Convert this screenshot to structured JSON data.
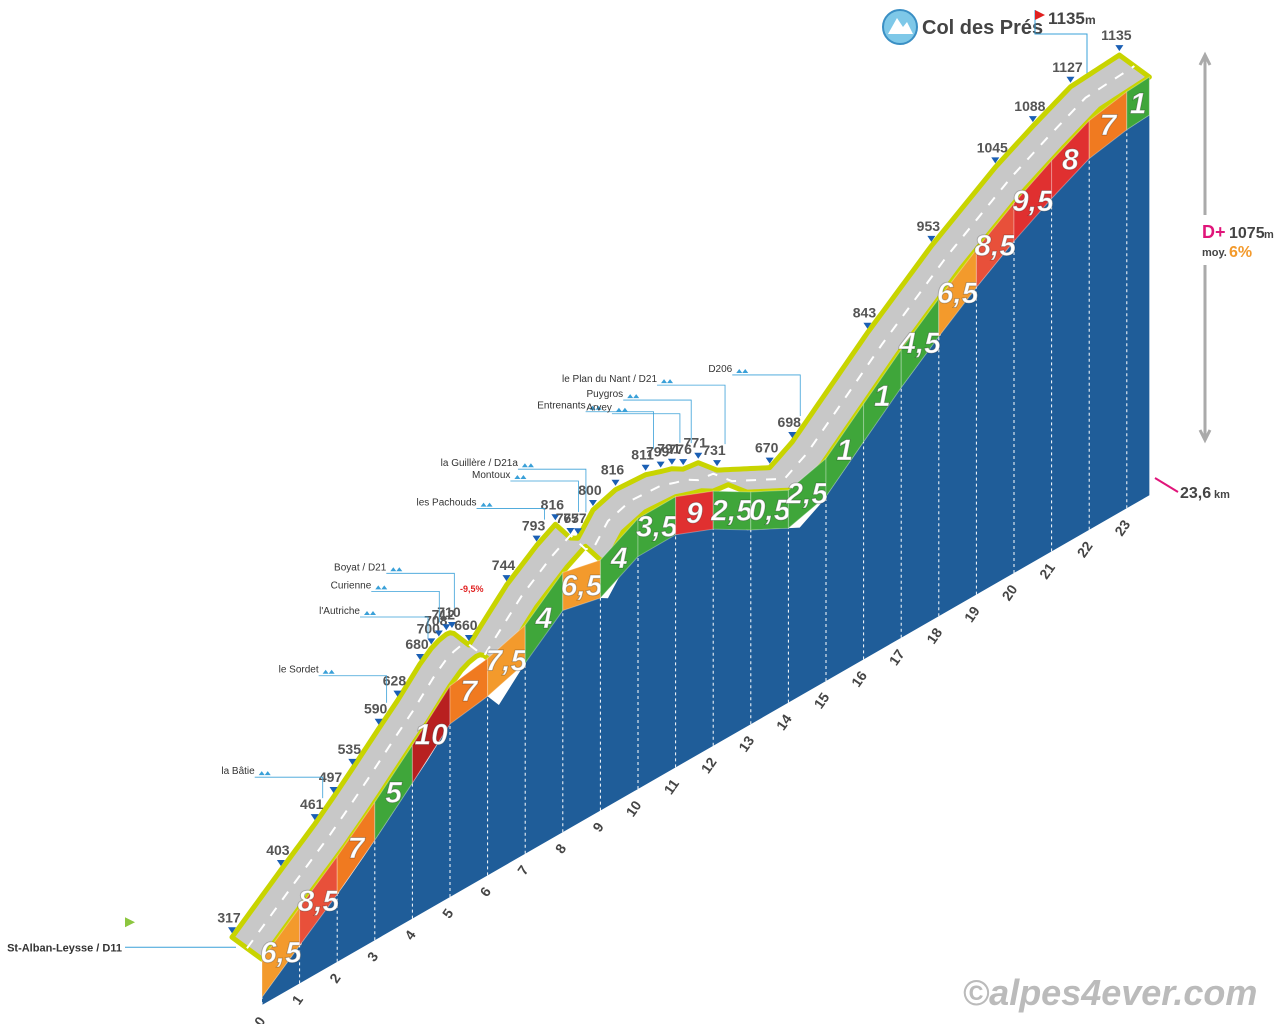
{
  "chart_data": {
    "type": "profile",
    "title": "Col des Prés",
    "summit_altitude": 1135,
    "altitude_unit": "m",
    "start": "St-Alban-Leysse / D11",
    "distance": {
      "value": 23.6,
      "label": "23,6"
    },
    "distance_unit": "km",
    "elevation_gain_label": "D+",
    "elevation_gain": 1075,
    "elevation_gain_unit": "m",
    "average_label": "moy.",
    "average": {
      "value": 6,
      "label": "6%"
    },
    "annotation": "-9,5%",
    "credit": "©alpes4ever.com",
    "xlim": [
      0,
      23.6
    ],
    "ylim": [
      300,
      1150
    ],
    "xticks": [
      0,
      1,
      2,
      3,
      4,
      5,
      6,
      7,
      8,
      9,
      10,
      11,
      12,
      13,
      14,
      15,
      16,
      17,
      18,
      19,
      20,
      21,
      22,
      23
    ],
    "points": {
      "x": [
        0,
        1.3,
        2.2,
        2.7,
        3.2,
        3.9,
        4.4,
        5.0,
        5.3,
        5.5,
        5.7,
        5.85,
        6.3,
        7.3,
        8.1,
        8.6,
        9.0,
        9.2,
        9.6,
        10.2,
        11.0,
        11.4,
        11.7,
        12.0,
        12.4,
        12.9,
        14.3,
        14.9,
        16.9,
        18.6,
        20.3,
        21.3,
        22.3,
        23.6
      ],
      "values": [
        317,
        403,
        461,
        497,
        535,
        590,
        628,
        680,
        700,
        708,
        712,
        710,
        660,
        744,
        793,
        816,
        767,
        757,
        800,
        816,
        811,
        799,
        791,
        776,
        771,
        731,
        670,
        698,
        843,
        953,
        1045,
        1088,
        1127,
        1135
      ]
    },
    "gradients": {
      "bins": [
        0,
        1,
        2,
        3,
        4,
        5,
        6,
        7,
        8,
        9,
        10,
        11,
        12,
        13,
        14,
        15,
        16,
        17,
        18,
        19,
        20,
        21,
        22,
        23,
        23.6
      ],
      "values": [
        6.5,
        8.5,
        7,
        5,
        10,
        7,
        7.5,
        4,
        6.5,
        4,
        3.5,
        9,
        2.5,
        0.5,
        2.5,
        1,
        1,
        4.5,
        6.5,
        8.5,
        9.5,
        8,
        7,
        1
      ],
      "value_labels": [
        "6,5",
        "8,5",
        "7",
        "5",
        "10",
        "7",
        "7,5",
        "4",
        "6,5",
        "4",
        "3,5",
        "9",
        "2,5",
        "0,5",
        "2,5",
        "1",
        "1",
        "4,5",
        "6,5",
        "8,5",
        "9,5",
        "8",
        "7",
        "1"
      ],
      "colors": [
        "#f39a2c",
        "#e8503a",
        "#f07a20",
        "#3fa63a",
        "#b82020",
        "#f07a20",
        "#f39a2c",
        "#3fa63a",
        "#f39a2c",
        "#3fa63a",
        "#3fa63a",
        "#e03030",
        "#3fa63a",
        "#3fa63a",
        "#3fa63a",
        "#3fa63a",
        "#3fa63a",
        "#3fa63a",
        "#f39a2c",
        "#e8503a",
        "#e03030",
        "#e03030",
        "#f07a20",
        "#3fa63a"
      ]
    },
    "places": [
      "la Bâtie",
      "le Sordet",
      "l'Autriche",
      "Curienne",
      "Boyat / D21",
      "les Pachouds",
      "Montoux",
      "la Guillère / D21a",
      "Entrenants",
      "Arvey",
      "Puygros",
      "le Plan du Nant / D21",
      "D206"
    ]
  }
}
